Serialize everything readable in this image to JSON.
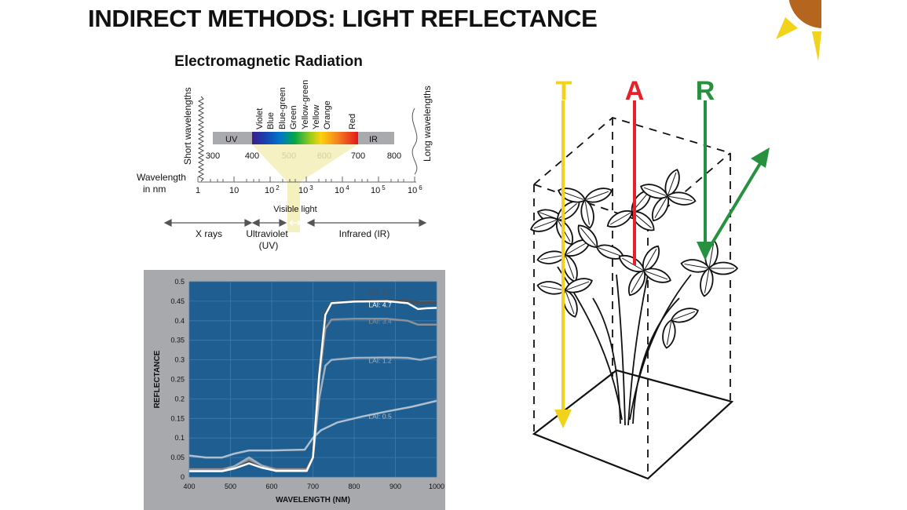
{
  "slide": {
    "title": "INDIRECT METHODS: LIGHT REFLECTANCE"
  },
  "em": {
    "title": "Electromagnetic Radiation",
    "short_wavelengths": "Short wavelengths",
    "long_wavelengths": "Long wavelengths",
    "colors": [
      "Violet",
      "Blue",
      "Blue-green",
      "Green",
      "Yellow-green",
      "Yellow",
      "Orange",
      "Red"
    ],
    "uv_label": "UV",
    "ir_label": "IR",
    "nm_ticks": [
      "300",
      "400",
      "500",
      "600",
      "700",
      "800"
    ],
    "wavelength_label_1": "Wavelength",
    "wavelength_label_2": "in nm",
    "log_ticks": [
      {
        "base": "1",
        "exp": ""
      },
      {
        "base": "10",
        "exp": ""
      },
      {
        "base": "10",
        "exp": "2"
      },
      {
        "base": "10",
        "exp": "3"
      },
      {
        "base": "10",
        "exp": "4"
      },
      {
        "base": "10",
        "exp": "5"
      },
      {
        "base": "10",
        "exp": "6"
      }
    ],
    "visible_light": "Visible light",
    "xrays": "X rays",
    "ultraviolet_1": "Ultraviolet",
    "ultraviolet_2": "(UV)",
    "infrared": "Infrared (IR)"
  },
  "chart_data": {
    "type": "line",
    "xlabel": "WAVELENGTH (NM)",
    "ylabel": "REFLECTANCE",
    "xlim": [
      400,
      1000
    ],
    "ylim": [
      0,
      0.5
    ],
    "xticks": [
      "400",
      "500",
      "600",
      "700",
      "800",
      "900",
      "1000"
    ],
    "yticks": [
      "0",
      "0.05",
      "0.1",
      "0.15",
      "0.2",
      "0.25",
      "0.3",
      "0.35",
      "0.4",
      "0.45",
      "0.5"
    ],
    "grid": true,
    "background": "#1f5e91",
    "series": [
      {
        "name": "LAI: 5.8",
        "color": "#4a4f55",
        "width": 3.5,
        "points": [
          [
            400,
            0.02
          ],
          [
            480,
            0.02
          ],
          [
            510,
            0.026
          ],
          [
            545,
            0.04
          ],
          [
            575,
            0.028
          ],
          [
            610,
            0.02
          ],
          [
            685,
            0.02
          ],
          [
            700,
            0.05
          ],
          [
            715,
            0.26
          ],
          [
            730,
            0.42
          ],
          [
            745,
            0.445
          ],
          [
            800,
            0.45
          ],
          [
            880,
            0.451
          ],
          [
            930,
            0.45
          ],
          [
            960,
            0.446
          ],
          [
            1000,
            0.446
          ]
        ]
      },
      {
        "name": "LAI: 4.7",
        "color": "#ffffff",
        "width": 2.5,
        "points": [
          [
            400,
            0.015
          ],
          [
            480,
            0.015
          ],
          [
            510,
            0.022
          ],
          [
            545,
            0.035
          ],
          [
            575,
            0.024
          ],
          [
            610,
            0.016
          ],
          [
            685,
            0.016
          ],
          [
            700,
            0.05
          ],
          [
            715,
            0.26
          ],
          [
            730,
            0.415
          ],
          [
            745,
            0.445
          ],
          [
            800,
            0.449
          ],
          [
            880,
            0.45
          ],
          [
            930,
            0.445
          ],
          [
            955,
            0.43
          ],
          [
            975,
            0.432
          ],
          [
            1000,
            0.433
          ]
        ]
      },
      {
        "name": "LAI: 3.4",
        "color": "#8d9096",
        "width": 2.5,
        "points": [
          [
            400,
            0.02
          ],
          [
            480,
            0.02
          ],
          [
            510,
            0.028
          ],
          [
            545,
            0.045
          ],
          [
            575,
            0.03
          ],
          [
            610,
            0.02
          ],
          [
            685,
            0.02
          ],
          [
            700,
            0.05
          ],
          [
            715,
            0.25
          ],
          [
            730,
            0.38
          ],
          [
            745,
            0.403
          ],
          [
            800,
            0.405
          ],
          [
            880,
            0.405
          ],
          [
            930,
            0.4
          ],
          [
            955,
            0.39
          ],
          [
            975,
            0.39
          ],
          [
            1000,
            0.39
          ]
        ]
      },
      {
        "name": "LAI: 1.2",
        "color": "#9fb2c5",
        "width": 2.5,
        "points": [
          [
            400,
            0.015
          ],
          [
            480,
            0.015
          ],
          [
            510,
            0.028
          ],
          [
            545,
            0.05
          ],
          [
            575,
            0.03
          ],
          [
            610,
            0.015
          ],
          [
            685,
            0.015
          ],
          [
            700,
            0.05
          ],
          [
            715,
            0.2
          ],
          [
            730,
            0.285
          ],
          [
            745,
            0.3
          ],
          [
            800,
            0.305
          ],
          [
            880,
            0.306
          ],
          [
            930,
            0.305
          ],
          [
            960,
            0.3
          ],
          [
            1000,
            0.308
          ]
        ]
      },
      {
        "name": "LAI: 0.5",
        "color": "#aebfcf",
        "width": 2.5,
        "points": [
          [
            400,
            0.055
          ],
          [
            440,
            0.05
          ],
          [
            480,
            0.05
          ],
          [
            510,
            0.06
          ],
          [
            545,
            0.068
          ],
          [
            600,
            0.068
          ],
          [
            680,
            0.07
          ],
          [
            700,
            0.1
          ],
          [
            720,
            0.12
          ],
          [
            760,
            0.14
          ],
          [
            820,
            0.155
          ],
          [
            880,
            0.168
          ],
          [
            940,
            0.18
          ],
          [
            1000,
            0.195
          ]
        ]
      }
    ]
  },
  "tar": {
    "t_label": "T",
    "a_label": "A",
    "r_label": "R",
    "t_color": "#f2d31c",
    "a_color": "#e5222b",
    "r_color": "#27913f"
  },
  "sun": {
    "disc_color": "#b5651d",
    "ray_color": "#f2d31c"
  }
}
